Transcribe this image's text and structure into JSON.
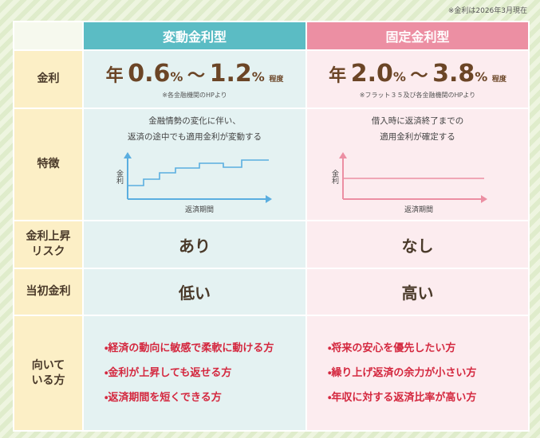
{
  "note": "※金利は2026年3月現在",
  "row_labels": [
    [
      "金利"
    ],
    [
      "特徴"
    ],
    [
      "金利上昇",
      "リスク"
    ],
    [
      "当初金利"
    ],
    [
      "向いて",
      "いる方"
    ]
  ],
  "columns": [
    {
      "title": "変動金利型",
      "rate": {
        "prefix": "年",
        "low": "0.6",
        "low_unit": "%",
        "sep": "～",
        "high": "1.2",
        "high_unit": "%",
        "suffix": "程度"
      },
      "rate_note": "※各金融機関のHPより",
      "feature": [
        "金融情勢の変化に伴い、",
        "返済の途中でも適用金利が変動する"
      ],
      "graph": {
        "y_label": "金利",
        "x_label": "返済期間"
      },
      "risk": "あり",
      "initial": "低い",
      "suited": [
        "・経済の動向に敏感で柔軟に動ける方",
        "・金利が上昇しても返せる方",
        "・返済期間を短くできる方"
      ]
    },
    {
      "title": "固定金利型",
      "rate": {
        "prefix": "年",
        "low": "2.0",
        "low_unit": "%",
        "sep": "～",
        "high": "3.8",
        "high_unit": "%",
        "suffix": "程度"
      },
      "rate_note": "※フラット３５及び各金融機関のHPより",
      "feature": [
        "借入時に返済終了までの",
        "適用金利が確定する"
      ],
      "graph": {
        "y_label": "金利",
        "x_label": "返済期間"
      },
      "risk": "なし",
      "initial": "高い",
      "suited": [
        "・将来の安心を優先したい方",
        "・繰り上げ返済の余力が小さい方",
        "・年収に対する返済比率が高い方"
      ]
    }
  ]
}
